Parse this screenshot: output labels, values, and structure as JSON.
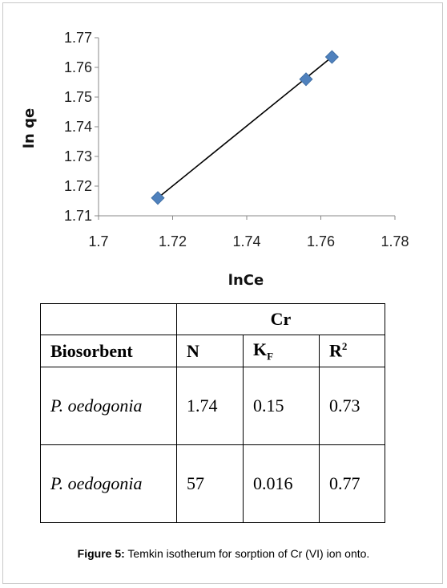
{
  "chart_data": {
    "type": "scatter",
    "xlabel": "lnCe",
    "ylabel": "ln qe",
    "xlim": [
      1.7,
      1.78
    ],
    "ylim": [
      1.71,
      1.77
    ],
    "x_ticks": [
      "1.7",
      "1.72",
      "1.74",
      "1.76",
      "1.78"
    ],
    "y_ticks": [
      "1.71",
      "1.72",
      "1.73",
      "1.74",
      "1.75",
      "1.76",
      "1.77"
    ],
    "points": [
      {
        "x": 1.716,
        "y": 1.716
      },
      {
        "x": 1.756,
        "y": 1.756
      },
      {
        "x": 1.763,
        "y": 1.7635
      }
    ],
    "trendline": [
      {
        "x": 1.716,
        "y": 1.716
      },
      {
        "x": 1.763,
        "y": 1.7635
      }
    ],
    "marker_color": "#4f81bd",
    "line_color": "#000000",
    "grid": false
  },
  "table": {
    "group_header": "Cr",
    "col_headers": {
      "biosorbent": "Biosorbent",
      "n": "N",
      "kf_main": "K",
      "kf_sub": "F",
      "r2_main": "R",
      "r2_sup": "2"
    },
    "rows": [
      {
        "biosorbent": "P. oedogonia",
        "n": "1.74",
        "kf": "0.15",
        "r2": "0.73"
      },
      {
        "biosorbent": "P. oedogonia",
        "n": "57",
        "kf": "0.016",
        "r2": "0.77"
      }
    ]
  },
  "caption": {
    "label": "Figure 5:",
    "text": " Temkin isotherum for sorption of Cr (VI) ion onto."
  }
}
